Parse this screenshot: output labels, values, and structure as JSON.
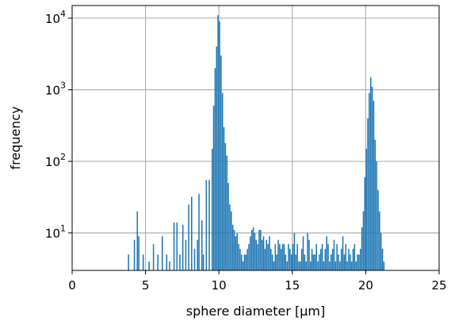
{
  "chart_data": {
    "type": "bar",
    "title": "",
    "xlabel": "sphere diameter [µm]",
    "ylabel": "frequency",
    "xlim": [
      0,
      25
    ],
    "ylim": [
      3,
      15000
    ],
    "yscale": "log",
    "grid": true,
    "bar_color": "#1f77b4",
    "bin_width": 0.1,
    "x_ticks": [
      0,
      5,
      10,
      15,
      20,
      25
    ],
    "x_tick_labels": [
      "0",
      "5",
      "10",
      "15",
      "20",
      "25"
    ],
    "y_ticks": [
      10,
      100,
      1000,
      10000
    ],
    "y_tick_labels": [
      {
        "base": "10",
        "exp": "1"
      },
      {
        "base": "10",
        "exp": "2"
      },
      {
        "base": "10",
        "exp": "3"
      },
      {
        "base": "10",
        "exp": "4"
      }
    ],
    "bins": [
      [
        3.8,
        5
      ],
      [
        4.2,
        8
      ],
      [
        4.4,
        20
      ],
      [
        4.5,
        9
      ],
      [
        4.8,
        5
      ],
      [
        5.2,
        4
      ],
      [
        5.5,
        7
      ],
      [
        5.8,
        5
      ],
      [
        6.1,
        9
      ],
      [
        6.4,
        5
      ],
      [
        6.6,
        4
      ],
      [
        6.9,
        14
      ],
      [
        7.1,
        14
      ],
      [
        7.3,
        5
      ],
      [
        7.5,
        13
      ],
      [
        7.7,
        8
      ],
      [
        7.9,
        25
      ],
      [
        8.1,
        32
      ],
      [
        8.3,
        6
      ],
      [
        8.5,
        8
      ],
      [
        8.6,
        35
      ],
      [
        8.8,
        15
      ],
      [
        8.9,
        5
      ],
      [
        9.1,
        55
      ],
      [
        9.3,
        55
      ],
      [
        9.5,
        150
      ],
      [
        9.6,
        600
      ],
      [
        9.7,
        2000
      ],
      [
        9.8,
        4000
      ],
      [
        9.9,
        11000
      ],
      [
        10.0,
        9000
      ],
      [
        10.1,
        3000
      ],
      [
        10.2,
        900
      ],
      [
        10.3,
        300
      ],
      [
        10.4,
        180
      ],
      [
        10.5,
        120
      ],
      [
        10.6,
        50
      ],
      [
        10.7,
        25
      ],
      [
        10.8,
        20
      ],
      [
        10.9,
        13
      ],
      [
        11.0,
        11
      ],
      [
        11.1,
        9
      ],
      [
        11.2,
        10
      ],
      [
        11.3,
        7
      ],
      [
        11.4,
        6
      ],
      [
        11.5,
        5
      ],
      [
        11.6,
        4
      ],
      [
        11.7,
        5
      ],
      [
        11.8,
        5
      ],
      [
        11.9,
        6
      ],
      [
        12.0,
        7
      ],
      [
        12.1,
        9
      ],
      [
        12.2,
        11
      ],
      [
        12.3,
        12
      ],
      [
        12.4,
        10
      ],
      [
        12.5,
        8
      ],
      [
        12.6,
        7
      ],
      [
        12.7,
        11
      ],
      [
        12.8,
        11
      ],
      [
        12.9,
        8
      ],
      [
        13.0,
        9
      ],
      [
        13.1,
        6
      ],
      [
        13.2,
        8
      ],
      [
        13.3,
        7
      ],
      [
        13.4,
        9
      ],
      [
        13.5,
        6
      ],
      [
        13.6,
        5
      ],
      [
        13.7,
        4
      ],
      [
        13.8,
        7
      ],
      [
        13.9,
        5
      ],
      [
        14.0,
        8
      ],
      [
        14.1,
        7
      ],
      [
        14.2,
        6
      ],
      [
        14.3,
        7
      ],
      [
        14.4,
        7
      ],
      [
        14.5,
        5
      ],
      [
        14.6,
        4
      ],
      [
        14.7,
        7
      ],
      [
        14.8,
        6
      ],
      [
        14.9,
        5
      ],
      [
        15.0,
        7
      ],
      [
        15.1,
        10
      ],
      [
        15.2,
        5
      ],
      [
        15.3,
        7
      ],
      [
        15.4,
        4
      ],
      [
        15.5,
        4
      ],
      [
        15.6,
        6
      ],
      [
        15.7,
        9
      ],
      [
        15.8,
        5
      ],
      [
        15.9,
        4
      ],
      [
        16.0,
        10
      ],
      [
        16.1,
        8
      ],
      [
        16.2,
        4
      ],
      [
        16.3,
        6
      ],
      [
        16.4,
        5
      ],
      [
        16.5,
        5
      ],
      [
        16.6,
        7
      ],
      [
        16.7,
        4
      ],
      [
        16.8,
        5
      ],
      [
        16.9,
        6
      ],
      [
        17.0,
        7
      ],
      [
        17.1,
        4
      ],
      [
        17.2,
        6
      ],
      [
        17.3,
        9
      ],
      [
        17.4,
        7
      ],
      [
        17.5,
        4
      ],
      [
        17.6,
        5
      ],
      [
        17.7,
        6
      ],
      [
        17.8,
        8
      ],
      [
        17.9,
        4
      ],
      [
        18.0,
        7
      ],
      [
        18.1,
        5
      ],
      [
        18.2,
        4
      ],
      [
        18.3,
        6
      ],
      [
        18.4,
        9
      ],
      [
        18.5,
        5
      ],
      [
        18.6,
        7
      ],
      [
        18.7,
        4
      ],
      [
        18.8,
        6
      ],
      [
        18.9,
        5
      ],
      [
        19.0,
        4
      ],
      [
        19.1,
        6
      ],
      [
        19.2,
        7
      ],
      [
        19.3,
        4
      ],
      [
        19.4,
        5
      ],
      [
        19.5,
        5
      ],
      [
        19.6,
        6
      ],
      [
        19.7,
        12
      ],
      [
        19.8,
        20
      ],
      [
        19.9,
        60
      ],
      [
        20.0,
        150
      ],
      [
        20.1,
        400
      ],
      [
        20.2,
        900
      ],
      [
        20.3,
        1500
      ],
      [
        20.4,
        1100
      ],
      [
        20.5,
        700
      ],
      [
        20.6,
        200
      ],
      [
        20.7,
        100
      ],
      [
        20.8,
        40
      ],
      [
        20.9,
        20
      ],
      [
        21.0,
        10
      ],
      [
        21.1,
        6
      ],
      [
        21.2,
        4
      ]
    ]
  }
}
